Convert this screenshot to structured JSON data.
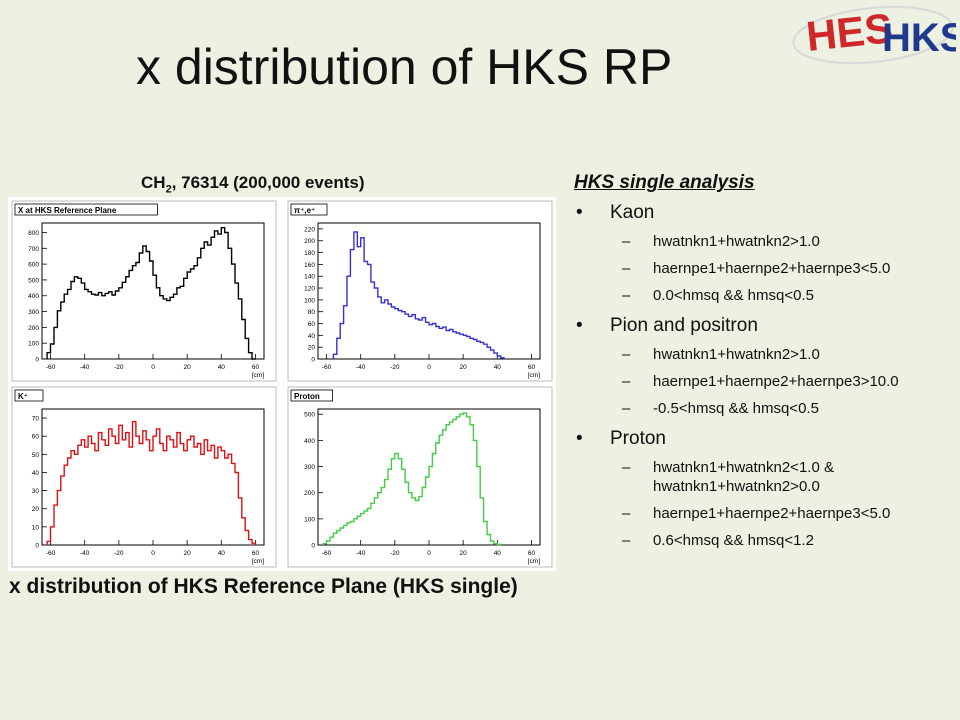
{
  "title": "x distribution of HKS RP",
  "logo": {
    "text_a": "HES",
    "text_b": "HKS"
  },
  "subtitle": {
    "pre": "CH",
    "sub": "2",
    "post": ", 76314 (200,000 events)"
  },
  "caption": "x distribution of HKS Reference Plane (HKS single)",
  "analysis": {
    "heading": "HKS single analysis",
    "groups": [
      {
        "label": "Kaon",
        "conds": [
          "hwatnkn1+hwatnkn2>1.0",
          "haernpe1+haernpe2+haernpe3<5.0",
          "0.0<hmsq && hmsq<0.5"
        ]
      },
      {
        "label": "Pion and positron",
        "conds": [
          "hwatnkn1+hwatnkn2>1.0",
          "haernpe1+haernpe2+haernpe3>10.0",
          "-0.5<hmsq && hmsq<0.5"
        ]
      },
      {
        "label": "Proton",
        "conds": [
          "hwatnkn1+hwatnkn2<1.0 & hwatnkn1+hwatnkn2>0.0",
          "haernpe1+haernpe2+haernpe3<5.0",
          "0.6<hmsq && hmsq<1.2"
        ]
      }
    ]
  },
  "chart_data": [
    {
      "type": "histogram",
      "title": "X at HKS Reference Plane",
      "unit": "[cm]",
      "color": "#000000",
      "xlim": [
        -65,
        65
      ],
      "ylim": [
        0,
        860
      ],
      "xticks": [
        -60,
        -40,
        -20,
        0,
        20,
        40,
        60
      ],
      "yticks": [
        0,
        100,
        200,
        300,
        400,
        500,
        600,
        700,
        800
      ],
      "bins_x_start": -62,
      "bin_width": 2,
      "values": [
        40,
        95,
        200,
        305,
        360,
        410,
        440,
        490,
        520,
        510,
        480,
        440,
        425,
        410,
        405,
        420,
        400,
        415,
        425,
        405,
        430,
        450,
        485,
        520,
        560,
        590,
        610,
        670,
        715,
        680,
        620,
        530,
        450,
        400,
        380,
        370,
        390,
        410,
        450,
        460,
        510,
        550,
        570,
        590,
        640,
        700,
        740,
        720,
        770,
        810,
        790,
        830,
        800,
        700,
        600,
        480,
        380,
        250,
        130,
        40,
        0
      ]
    },
    {
      "type": "histogram",
      "title": "π⁺,e⁺",
      "unit": "[cm]",
      "color": "#3333cc",
      "xlim": [
        -65,
        65
      ],
      "ylim": [
        0,
        230
      ],
      "xticks": [
        -60,
        -40,
        -20,
        0,
        20,
        40,
        60
      ],
      "yticks": [
        0,
        20,
        40,
        60,
        80,
        100,
        120,
        140,
        160,
        180,
        200,
        220
      ],
      "bins_x_start": -56,
      "bin_width": 2,
      "values": [
        8,
        35,
        60,
        90,
        140,
        185,
        215,
        190,
        205,
        165,
        160,
        130,
        120,
        105,
        95,
        100,
        93,
        88,
        85,
        82,
        80,
        76,
        72,
        75,
        68,
        66,
        70,
        62,
        58,
        60,
        55,
        52,
        54,
        48,
        50,
        46,
        44,
        42,
        40,
        38,
        35,
        33,
        30,
        28,
        25,
        20,
        15,
        10,
        5,
        2
      ]
    },
    {
      "type": "histogram",
      "title": "K⁺",
      "unit": "[cm]",
      "color": "#dd1111",
      "xlim": [
        -65,
        65
      ],
      "ylim": [
        0,
        75
      ],
      "xticks": [
        -60,
        -40,
        -20,
        0,
        20,
        40,
        60
      ],
      "yticks": [
        0,
        10,
        20,
        30,
        40,
        50,
        60,
        70
      ],
      "bins_x_start": -62,
      "bin_width": 2,
      "values": [
        2,
        10,
        22,
        30,
        38,
        44,
        48,
        52,
        50,
        55,
        58,
        54,
        60,
        56,
        52,
        62,
        58,
        55,
        64,
        60,
        56,
        66,
        58,
        62,
        54,
        68,
        60,
        56,
        63,
        58,
        52,
        60,
        64,
        56,
        52,
        60,
        58,
        54,
        62,
        56,
        52,
        58,
        60,
        54,
        56,
        50,
        58,
        52,
        55,
        48,
        54,
        52,
        48,
        50,
        45,
        40,
        26,
        15,
        8,
        3,
        1
      ]
    },
    {
      "type": "histogram",
      "title": "Proton",
      "unit": "[cm]",
      "color": "#44cc44",
      "xlim": [
        -65,
        65
      ],
      "ylim": [
        0,
        520
      ],
      "xticks": [
        -60,
        -40,
        -20,
        0,
        20,
        40,
        60
      ],
      "yticks": [
        0,
        100,
        200,
        300,
        400,
        500
      ],
      "bins_x_start": -62,
      "bin_width": 2,
      "values": [
        5,
        15,
        30,
        45,
        55,
        65,
        75,
        85,
        90,
        100,
        110,
        120,
        130,
        140,
        160,
        180,
        200,
        220,
        250,
        290,
        330,
        350,
        330,
        290,
        240,
        200,
        180,
        170,
        185,
        220,
        260,
        300,
        350,
        390,
        420,
        440,
        460,
        470,
        480,
        490,
        500,
        505,
        490,
        460,
        400,
        300,
        180,
        90,
        40,
        15,
        5,
        2
      ]
    }
  ]
}
